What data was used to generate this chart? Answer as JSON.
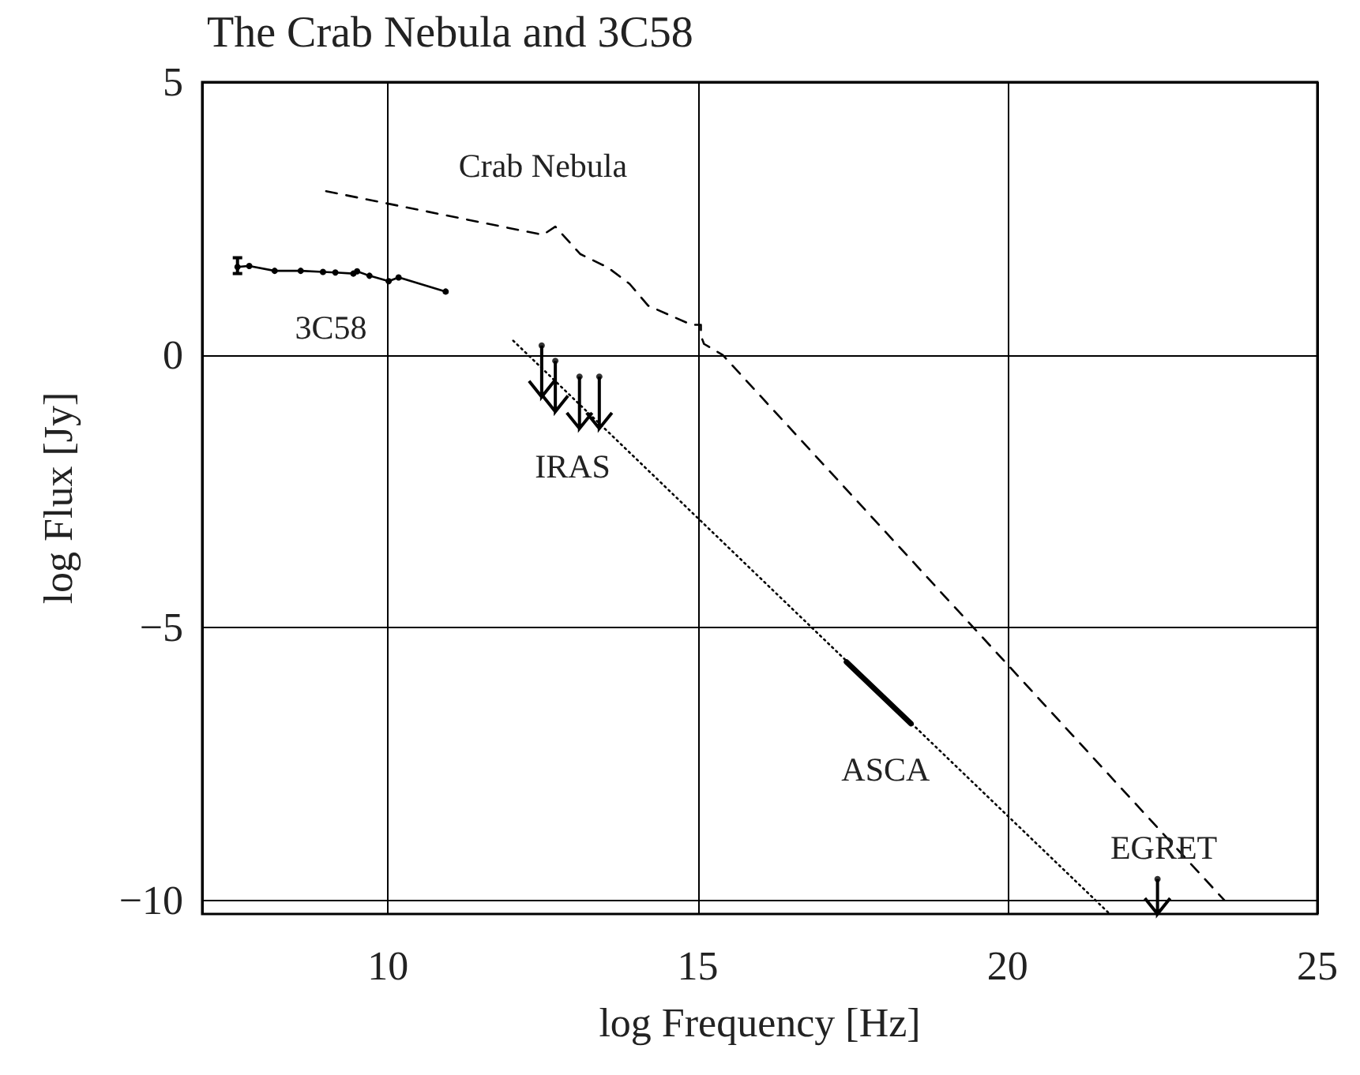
{
  "chart_data": {
    "type": "line",
    "title": "The Crab Nebula and 3C58",
    "xlabel": "log Frequency [Hz]",
    "ylabel": "log Flux [Jy]",
    "xlim": [
      7,
      25
    ],
    "xticks": [
      10,
      15,
      20,
      25
    ],
    "ylim": [
      -10.25,
      5
    ],
    "yticks": [
      -10,
      -5,
      0,
      5
    ],
    "grid": true,
    "legend": false,
    "series": [
      {
        "name": "Crab Nebula",
        "color": "#000000",
        "line_style": "dashed",
        "marker": "none",
        "x": [
          9.0,
          12.5,
          12.7,
          13.1,
          13.55,
          13.9,
          14.2,
          14.9,
          15.05,
          15.05,
          15.1,
          15.4,
          23.5
        ],
        "values": [
          3.0,
          2.2,
          2.35,
          1.85,
          1.6,
          1.3,
          0.9,
          0.55,
          0.55,
          0.35,
          0.2,
          0.0,
          -10.0
        ]
      },
      {
        "name": "3C58",
        "color": "#000000",
        "line_style": "solid",
        "marker": "circle",
        "x": [
          7.57,
          7.76,
          8.17,
          8.59,
          8.95,
          9.15,
          9.44,
          9.5,
          9.7,
          10.01,
          10.17,
          10.93
        ],
        "values": [
          1.61,
          1.63,
          1.54,
          1.54,
          1.52,
          1.51,
          1.49,
          1.53,
          1.45,
          1.35,
          1.42,
          1.16
        ],
        "errors": [
          [
            1.49,
            1.78
          ],
          null,
          null,
          null,
          null,
          null,
          null,
          null,
          null,
          null,
          null,
          null
        ]
      },
      {
        "color": "#000000",
        "line_style": "dotted",
        "marker": "none",
        "x": [
          12.02,
          21.65
        ],
        "values": [
          0.26,
          -10.25
        ]
      },
      {
        "name": "ASCA",
        "color": "#000000",
        "line_style": "solid",
        "marker": "none",
        "x": [
          17.4,
          18.44
        ],
        "values": [
          -5.63,
          -6.76
        ]
      },
      {
        "name": "IRAS",
        "type": "scatter",
        "color": "#000000",
        "marker": "circle",
        "x": [
          12.48,
          12.7,
          13.09,
          13.41
        ],
        "values": [
          0.17,
          -0.11,
          -0.4,
          -0.4
        ],
        "errors": [
          [
            -0.77,
            0.17
          ],
          [
            -1.04,
            -0.11
          ],
          [
            -1.35,
            -0.4
          ],
          [
            -1.35,
            -0.4
          ]
        ]
      },
      {
        "name": "EGRET",
        "type": "scatter",
        "color": "#000000",
        "marker": "circle",
        "x": [
          22.42
        ],
        "values": [
          -9.61
        ],
        "errors": [
          [
            -10.25,
            -9.61
          ]
        ]
      }
    ]
  }
}
